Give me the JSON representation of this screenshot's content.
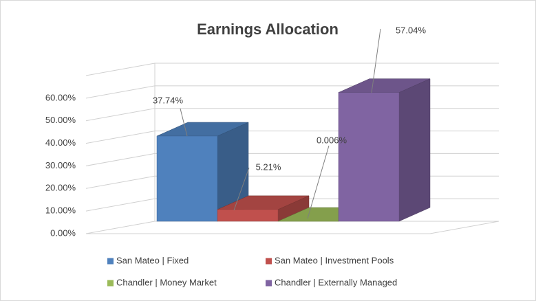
{
  "chart_data": {
    "type": "bar3d",
    "title": "Earnings Allocation",
    "categories": [
      "San Mateo | Fixed",
      "San Mateo | Investment Pools",
      "Chandler | Money Market",
      "Chandler | Externally Managed"
    ],
    "values": [
      37.74,
      5.21,
      0.006,
      57.04
    ],
    "value_labels": [
      "37.74%",
      "5.21%",
      "0.006%",
      "57.04%"
    ],
    "colors": [
      "#4f81bd",
      "#c0504d",
      "#9bbb59",
      "#8064a2"
    ],
    "ylim": [
      0,
      70
    ],
    "yticks": [
      {
        "value": 0,
        "label": "0.00%"
      },
      {
        "value": 10,
        "label": "10.00%"
      },
      {
        "value": 20,
        "label": "20.00%"
      },
      {
        "value": 30,
        "label": "30.00%"
      },
      {
        "value": 40,
        "label": "40.00%"
      },
      {
        "value": 50,
        "label": "50.00%"
      },
      {
        "value": 60,
        "label": "60.00%"
      }
    ],
    "grid": true,
    "legend": "bottom"
  }
}
